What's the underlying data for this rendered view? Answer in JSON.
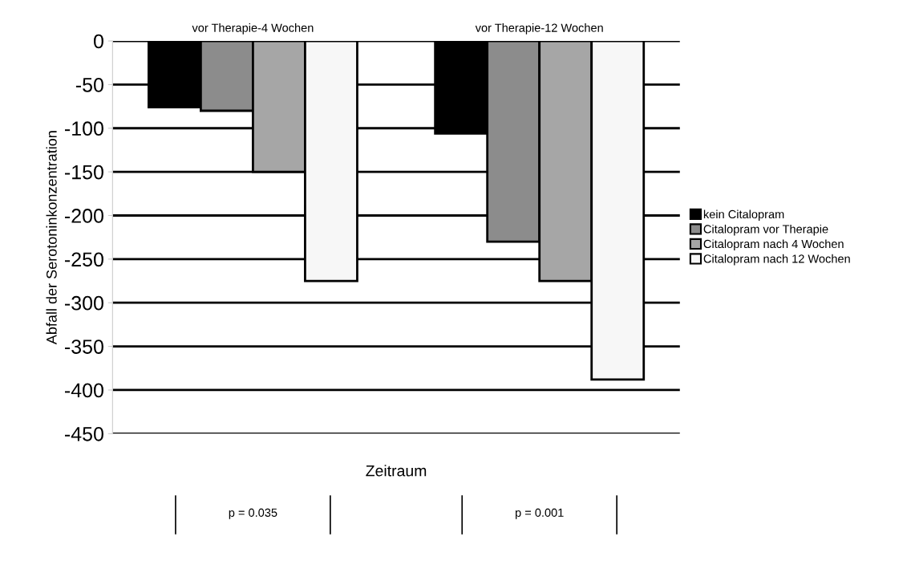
{
  "chart_data": {
    "type": "bar",
    "categories": [
      "vor Therapie-4 Wochen",
      "vor Therapie-12 Wochen"
    ],
    "xlabel": "Zeitraum",
    "ylabel": "Abfall der Serotoninkonzentration",
    "series": [
      {
        "name": "kein Citalopram",
        "color": "#000000",
        "values": [
          -76,
          -106
        ]
      },
      {
        "name": "Citalopram vor Therapie",
        "color": "#8c8c8c",
        "values": [
          -80,
          -230
        ]
      },
      {
        "name": "Citalopram nach 4 Wochen",
        "color": "#a6a6a6",
        "values": [
          -150,
          -275
        ]
      },
      {
        "name": "Citalopram nach 12 Wochen",
        "color": "#f7f7f7",
        "values": [
          -275,
          -388
        ]
      }
    ],
    "ylim": [
      -450,
      0
    ],
    "yticks": [
      0,
      -50,
      -100,
      -150,
      -200,
      -250,
      -300,
      -350,
      -400,
      -450
    ],
    "grid": "y",
    "legend": "right",
    "annotations": [
      "p = 0.035",
      "p = 0.001"
    ]
  }
}
